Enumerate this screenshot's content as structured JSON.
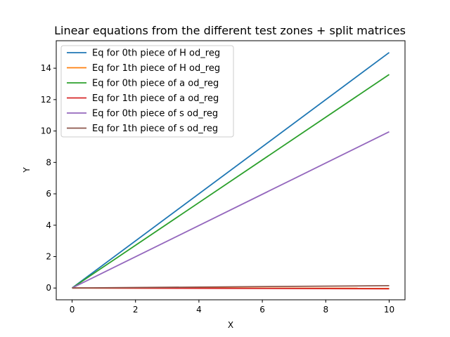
{
  "chart_data": {
    "type": "line",
    "title": "Linear equations from the different test zones + split matrices",
    "xlabel": "X",
    "ylabel": "Y",
    "xlim": [
      -0.5,
      10.5
    ],
    "ylim": [
      -0.75,
      15.75
    ],
    "x_ticks": [
      0,
      2,
      4,
      6,
      8,
      10
    ],
    "y_ticks": [
      0,
      2,
      4,
      6,
      8,
      10,
      12,
      14
    ],
    "grid": false,
    "legend_position": "top-left",
    "series": [
      {
        "name": "Eq for 0th piece of H od_reg",
        "color": "#1f77b4",
        "x": [
          0,
          10
        ],
        "y": [
          0,
          15.0
        ]
      },
      {
        "name": "Eq for 1th piece of H od_reg",
        "color": "#ff7f0e",
        "x": [
          0,
          10
        ],
        "y": [
          0,
          -0.02
        ]
      },
      {
        "name": "Eq for 0th piece of a od_reg",
        "color": "#2ca02c",
        "x": [
          0,
          10
        ],
        "y": [
          0,
          13.6
        ]
      },
      {
        "name": "Eq for 1th piece of a od_reg",
        "color": "#d62728",
        "x": [
          0,
          10
        ],
        "y": [
          0,
          -0.05
        ]
      },
      {
        "name": "Eq for 0th piece of s od_reg",
        "color": "#9467bd",
        "x": [
          0,
          10
        ],
        "y": [
          0,
          9.95
        ]
      },
      {
        "name": "Eq for 1th piece of s od_reg",
        "color": "#8c564b",
        "x": [
          0,
          10
        ],
        "y": [
          0,
          0.15
        ]
      }
    ]
  }
}
